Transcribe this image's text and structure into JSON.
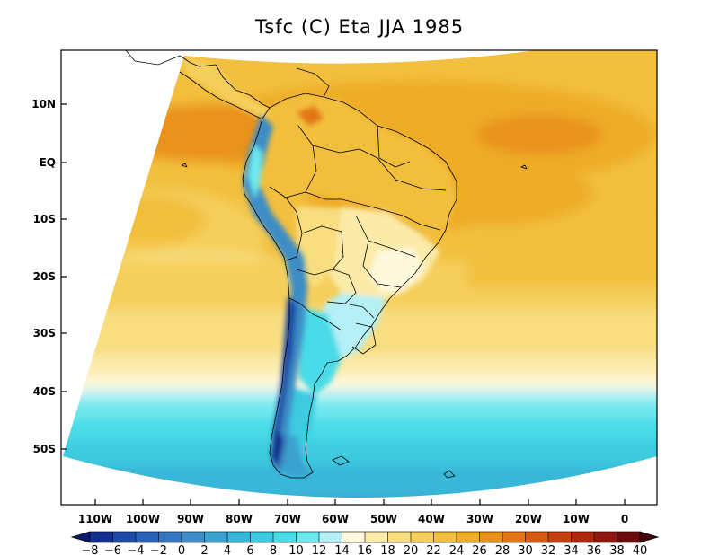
{
  "title": "Tsfc (C) Eta JJA 1985",
  "lat_labels": [
    "10N",
    "EQ",
    "10S",
    "20S",
    "30S",
    "40S",
    "50S"
  ],
  "lon_labels": [
    "110W",
    "100W",
    "90W",
    "80W",
    "70W",
    "60W",
    "50W",
    "40W",
    "30W",
    "20W",
    "10W",
    "0"
  ],
  "colorbar": {
    "labels": [
      "−8",
      "−6",
      "−4",
      "−2",
      "0",
      "2",
      "4",
      "6",
      "8",
      "10",
      "12",
      "14",
      "16",
      "18",
      "20",
      "22",
      "24",
      "26",
      "28",
      "30",
      "32",
      "34",
      "36",
      "38",
      "40"
    ],
    "colors": [
      "#0a1a6e",
      "#12318f",
      "#1d4aa6",
      "#2a62b5",
      "#3577bd",
      "#3d8dc6",
      "#3ba2cf",
      "#37b7d8",
      "#3ccbe0",
      "#48dbe8",
      "#6ee8ef",
      "#b4f0f5",
      "#fef8dc",
      "#fbeaa8",
      "#f8de80",
      "#f5cf5c",
      "#f2bf3e",
      "#eeac27",
      "#e9921a",
      "#e27614",
      "#d65a12",
      "#c53f10",
      "#ae270e",
      "#8e160c",
      "#6a0a0a",
      "#420608"
    ]
  }
}
